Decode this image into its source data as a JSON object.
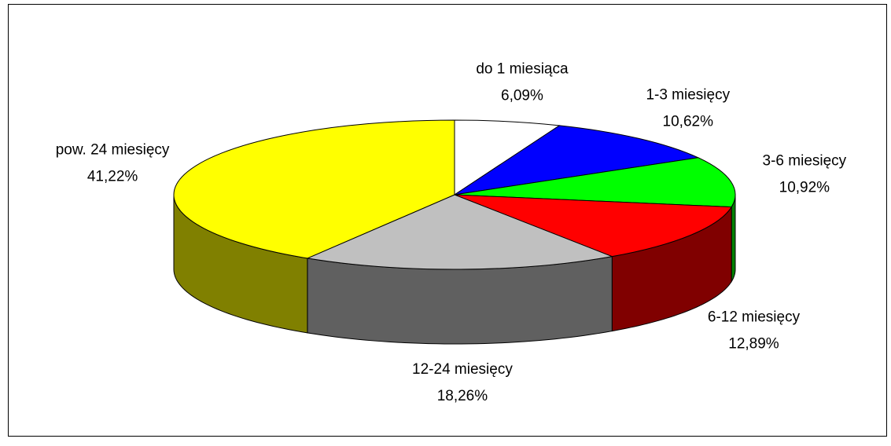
{
  "chart_data": {
    "type": "pie3d",
    "categories": [
      "do 1 miesiąca",
      "1-3 miesięcy",
      "3-6 miesięcy",
      "6-12 miesięcy",
      "12-24 miesięcy",
      "pow. 24 miesięcy"
    ],
    "values": [
      6.09,
      10.62,
      10.92,
      12.89,
      18.26,
      41.22
    ],
    "value_labels": [
      "6,09%",
      "10,62%",
      "10,92%",
      "12,89%",
      "18,26%",
      "41,22%"
    ],
    "colors": [
      "#ffffff",
      "#0000ff",
      "#00ff00",
      "#ff0000",
      "#c0c0c0",
      "#ffff00"
    ]
  }
}
